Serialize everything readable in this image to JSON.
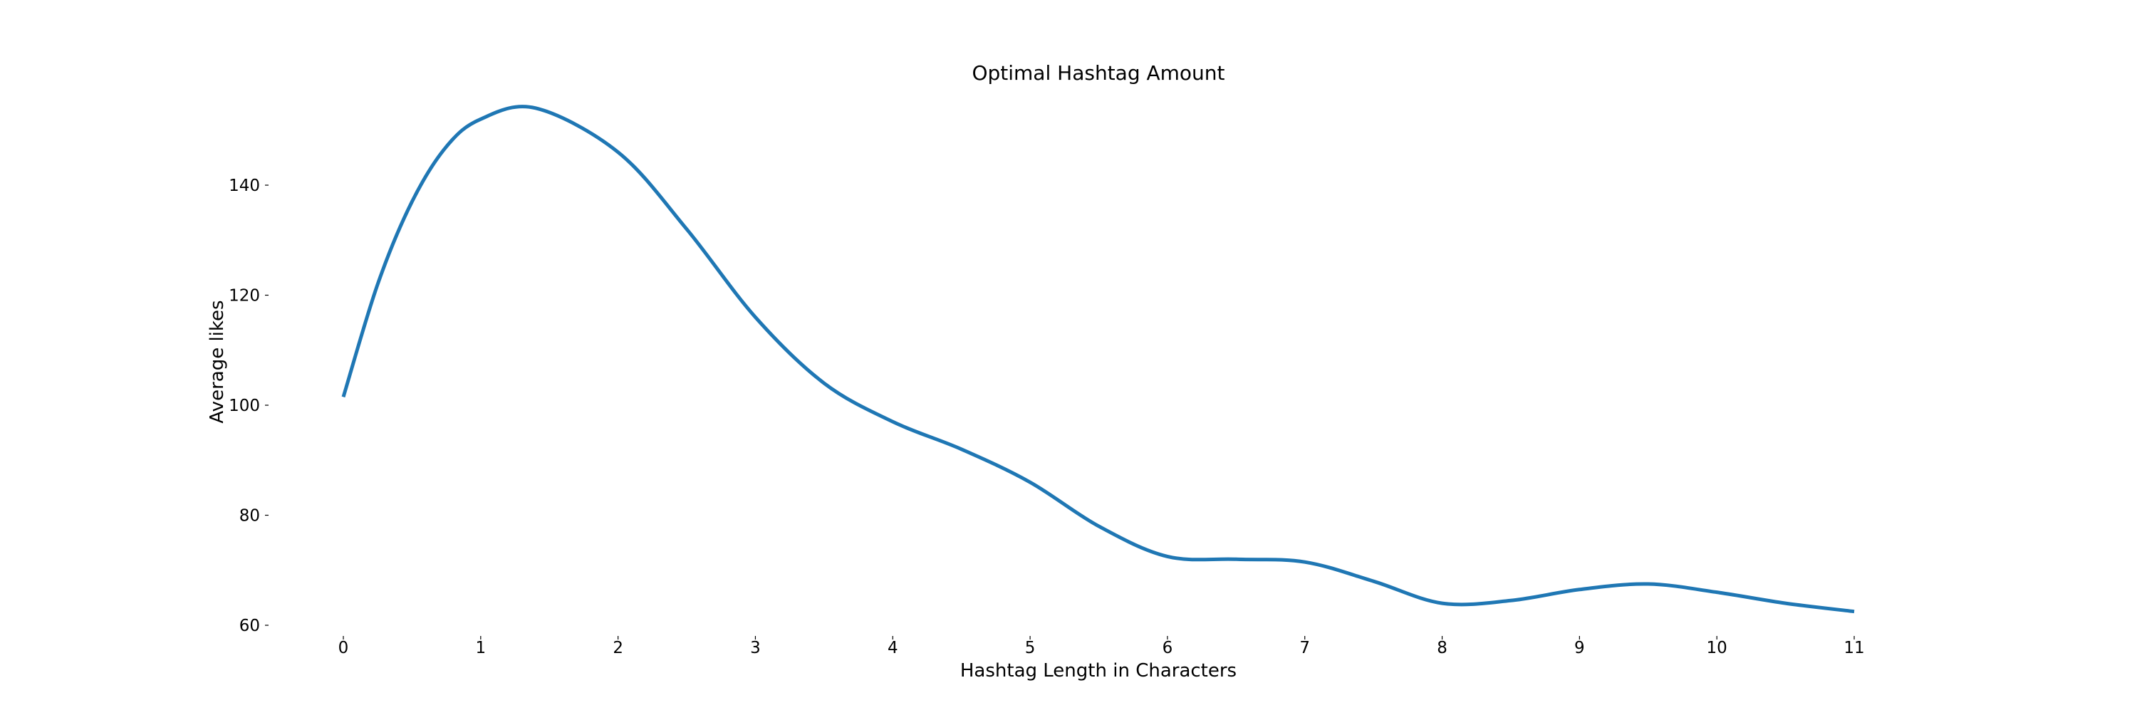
{
  "chart_data": {
    "type": "line",
    "title": "Optimal Hashtag Amount",
    "xlabel": "Hashtag Length in Characters",
    "ylabel": "Average likes",
    "xlim": [
      0,
      11
    ],
    "ylim": [
      60,
      155
    ],
    "x_ticks": [
      0,
      1,
      2,
      3,
      4,
      5,
      6,
      7,
      8,
      9,
      10,
      11
    ],
    "y_ticks": [
      60,
      80,
      100,
      120,
      140
    ],
    "grid": false,
    "series": [
      {
        "color": "#1f77b4",
        "smooth": true,
        "points": [
          {
            "x": 0,
            "y": 101.5
          },
          {
            "x": 0.25,
            "y": 122
          },
          {
            "x": 0.5,
            "y": 137
          },
          {
            "x": 0.75,
            "y": 147
          },
          {
            "x": 1,
            "y": 152
          },
          {
            "x": 1.4,
            "y": 154
          },
          {
            "x": 2,
            "y": 146
          },
          {
            "x": 2.5,
            "y": 132
          },
          {
            "x": 3,
            "y": 116
          },
          {
            "x": 3.5,
            "y": 104
          },
          {
            "x": 4,
            "y": 97
          },
          {
            "x": 4.5,
            "y": 92
          },
          {
            "x": 5,
            "y": 86
          },
          {
            "x": 5.5,
            "y": 78
          },
          {
            "x": 6,
            "y": 72.5
          },
          {
            "x": 6.5,
            "y": 72
          },
          {
            "x": 7,
            "y": 71.5
          },
          {
            "x": 7.5,
            "y": 68
          },
          {
            "x": 8,
            "y": 64
          },
          {
            "x": 8.5,
            "y": 64.5
          },
          {
            "x": 9,
            "y": 66.5
          },
          {
            "x": 9.5,
            "y": 67.5
          },
          {
            "x": 10,
            "y": 66
          },
          {
            "x": 10.5,
            "y": 64
          },
          {
            "x": 11,
            "y": 62.5
          }
        ]
      }
    ]
  }
}
